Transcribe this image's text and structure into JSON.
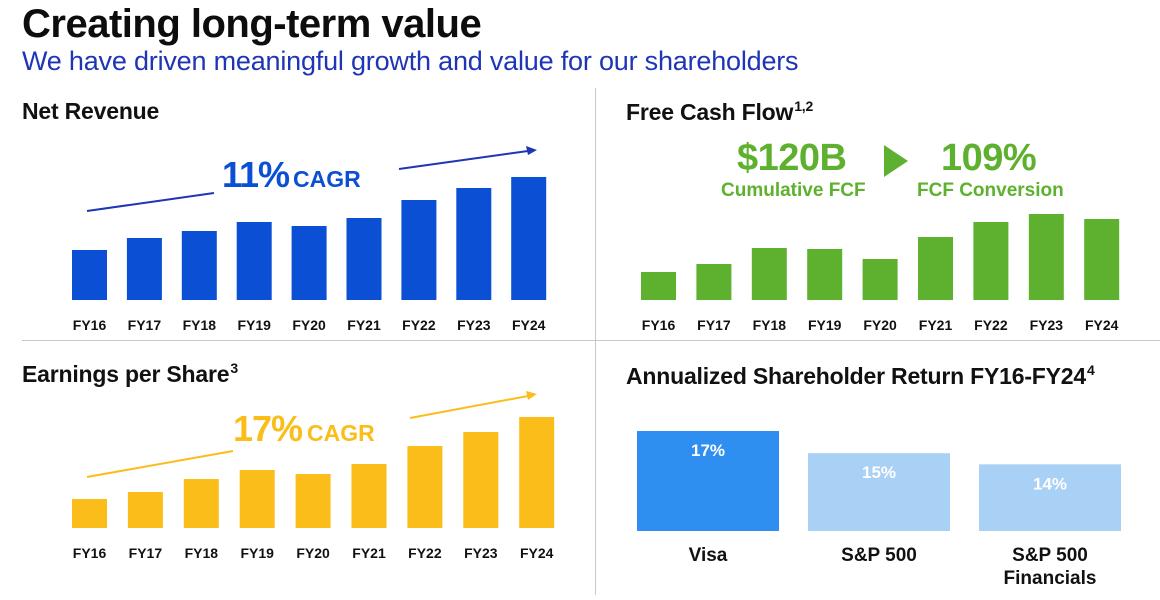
{
  "header": {
    "title": "Creating long-term value",
    "subtitle": "We have driven meaningful growth and value for our shareholders"
  },
  "colors": {
    "revenue": "#0b4fd4",
    "revenue_arrow": "#1e35b5",
    "fcf": "#5db12e",
    "eps": "#fbbd1a",
    "tsr_visa": "#2e8ff0",
    "tsr_other": "#a9d0f5"
  },
  "panels": {
    "net_revenue": {
      "title": "Net Revenue",
      "footnote": "",
      "cagr_value": "11%",
      "cagr_label": "CAGR"
    },
    "fcf": {
      "title": "Free Cash Flow",
      "footnote": "1,2",
      "cumulative_value": "$120B",
      "cumulative_label": "Cumulative FCF",
      "conversion_value": "109%",
      "conversion_label": "FCF Conversion"
    },
    "eps": {
      "title": "Earnings per Share",
      "footnote": "3",
      "cagr_value": "17%",
      "cagr_label": "CAGR"
    },
    "tsr": {
      "title": "Annualized Shareholder Return FY16-FY24",
      "footnote": "4"
    }
  },
  "chart_data": [
    {
      "id": "net_revenue",
      "type": "bar",
      "title": "Net Revenue",
      "annotation": "11% CAGR",
      "categories": [
        "FY16",
        "FY17",
        "FY18",
        "FY19",
        "FY20",
        "FY21",
        "FY22",
        "FY23",
        "FY24"
      ],
      "values": [
        50,
        62,
        69,
        78,
        74,
        82,
        100,
        112,
        123
      ],
      "value_note": "relative bar heights (no values printed)",
      "ylim": [
        0,
        123
      ],
      "grid": false
    },
    {
      "id": "fcf",
      "type": "bar",
      "title": "Free Cash Flow",
      "annotation": "$120B Cumulative FCF ▶ 109% FCF Conversion",
      "categories": [
        "FY16",
        "FY17",
        "FY18",
        "FY19",
        "FY20",
        "FY21",
        "FY22",
        "FY23",
        "FY24"
      ],
      "values": [
        28,
        36,
        52,
        51,
        41,
        63,
        78,
        86,
        81
      ],
      "value_note": "relative bar heights (no values printed)",
      "ylim": [
        0,
        86
      ],
      "grid": false
    },
    {
      "id": "eps",
      "type": "bar",
      "title": "Earnings per Share",
      "annotation": "17% CAGR",
      "categories": [
        "FY16",
        "FY17",
        "FY18",
        "FY19",
        "FY20",
        "FY21",
        "FY22",
        "FY23",
        "FY24"
      ],
      "values": [
        29,
        36,
        49,
        58,
        54,
        64,
        82,
        96,
        111
      ],
      "value_note": "relative bar heights (no values printed)",
      "ylim": [
        0,
        111
      ],
      "grid": false
    },
    {
      "id": "tsr",
      "type": "bar",
      "title": "Annualized Shareholder Return FY16-FY24",
      "categories": [
        "Visa",
        "S&P 500",
        "S&P 500 Financials"
      ],
      "category_lines": [
        [
          "Visa"
        ],
        [
          "S&P 500"
        ],
        [
          "S&P 500",
          "Financials"
        ]
      ],
      "values": [
        17,
        15,
        14
      ],
      "labels": [
        "17%",
        "15%",
        "14%"
      ],
      "unit": "%",
      "grid": false
    }
  ]
}
